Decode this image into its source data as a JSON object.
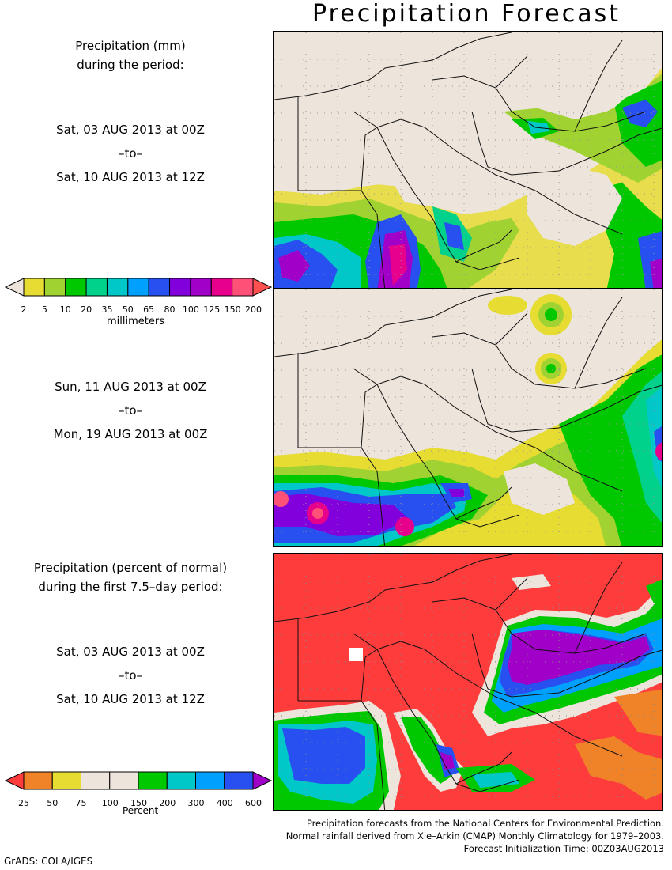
{
  "title": "Precipitation Forecast",
  "panel1": {
    "heading_line1": "Precipitation (mm)",
    "heading_line2": "during the period:",
    "start": "Sat, 03 AUG 2013 at 00Z",
    "to": "–to–",
    "end": "Sat, 10 AUG 2013 at 12Z"
  },
  "colorbar_mm": {
    "ticks": [
      "2",
      "5",
      "10",
      "20",
      "35",
      "50",
      "65",
      "80",
      "100",
      "125",
      "150",
      "200"
    ],
    "unit": "millimeters",
    "colors": [
      "#e6dc32",
      "#a0d232",
      "#00c800",
      "#00d28c",
      "#00c8c8",
      "#00a0ff",
      "#2850f0",
      "#8200dc",
      "#a000c8",
      "#e6008c",
      "#ff5078"
    ],
    "low_color": "#ede4dc",
    "high_color": "#ff5050"
  },
  "panel2": {
    "start": "Sun, 11 AUG 2013 at 00Z",
    "to": "–to–",
    "end": "Mon, 19 AUG 2013 at 00Z"
  },
  "panel3": {
    "heading_line1": "Precipitation (percent of normal)",
    "heading_line2": "during the first 7.5–day period:",
    "start": "Sat, 03 AUG 2013 at 00Z",
    "to": "–to–",
    "end": "Sat, 10 AUG 2013 at 12Z"
  },
  "colorbar_pct": {
    "ticks": [
      "25",
      "50",
      "75",
      "100",
      "150",
      "200",
      "300",
      "400",
      "600"
    ],
    "unit": "Percent",
    "colors": [
      "#f08228",
      "#e6dc32",
      "#ede4dc",
      "#ede4dc",
      "#00c800",
      "#00c8c8",
      "#00a0ff",
      "#2850f0"
    ],
    "low_color": "#ff3c3c",
    "high_color": "#a000c8"
  },
  "footer": {
    "line1": "Precipitation forecasts from the National Centers for Environmental Prediction.",
    "line2": "Normal rainfall derived from Xie–Arkin (CMAP) Monthly Climatology for 1979–2003.",
    "line3": "Forecast Initialization Time: 00Z03AUG2013"
  },
  "credit": "GrADS: COLA/IGES"
}
